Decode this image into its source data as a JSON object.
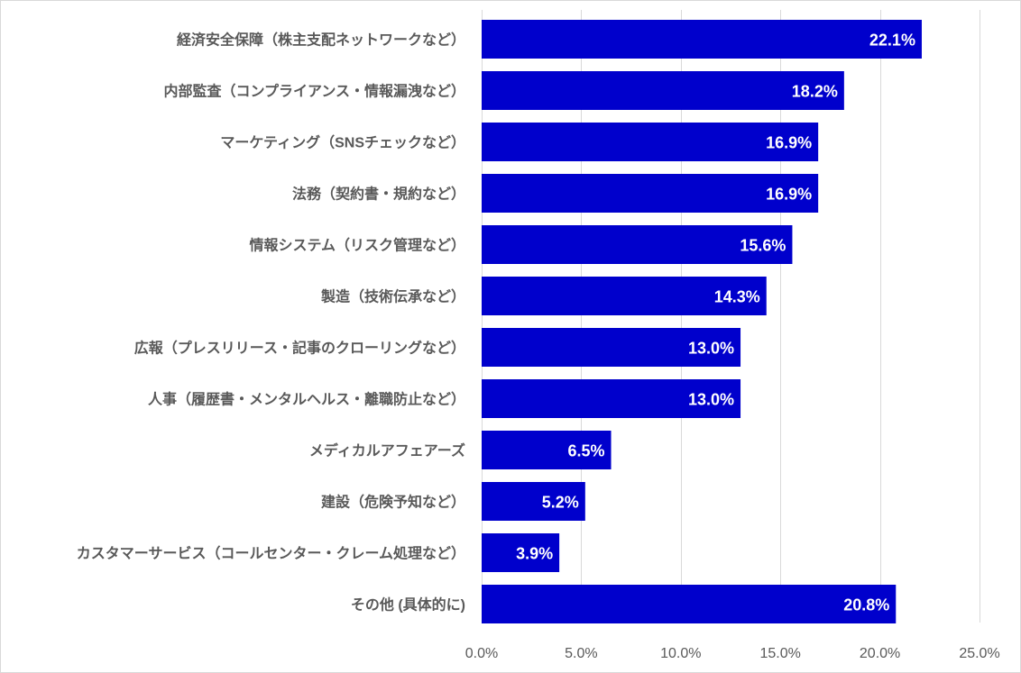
{
  "chart_data": {
    "type": "bar",
    "orientation": "horizontal",
    "categories": [
      "経済安全保障（株主支配ネットワークなど）",
      "内部監査（コンプライアンス・情報漏洩など）",
      "マーケティング（SNSチェックなど）",
      "法務（契約書・規約など）",
      "情報システム（リスク管理など）",
      "製造（技術伝承など）",
      "広報（プレスリリース・記事のクローリングなど）",
      "人事（履歴書・メンタルヘルス・離職防止など）",
      "メディカルアフェアーズ",
      "建設（危険予知など）",
      "カスタマーサービス（コールセンター・クレーム処理など）",
      "その他 (具体的に)"
    ],
    "values": [
      22.1,
      18.2,
      16.9,
      16.9,
      15.6,
      14.3,
      13.0,
      13.0,
      6.5,
      5.2,
      3.9,
      20.8
    ],
    "value_labels": [
      "22.1%",
      "18.2%",
      "16.9%",
      "16.9%",
      "15.6%",
      "14.3%",
      "13.0%",
      "13.0%",
      "6.5%",
      "5.2%",
      "3.9%",
      "20.8%"
    ],
    "x_ticks": [
      0,
      5,
      10,
      15,
      20,
      25
    ],
    "x_tick_labels": [
      "0.0%",
      "5.0%",
      "10.0%",
      "15.0%",
      "20.0%",
      "25.0%"
    ],
    "xlim": [
      0,
      25
    ],
    "title": "",
    "xlabel": "",
    "ylabel": "",
    "grid": "vertical",
    "legend": "none",
    "bar_color": "#0000CC"
  }
}
